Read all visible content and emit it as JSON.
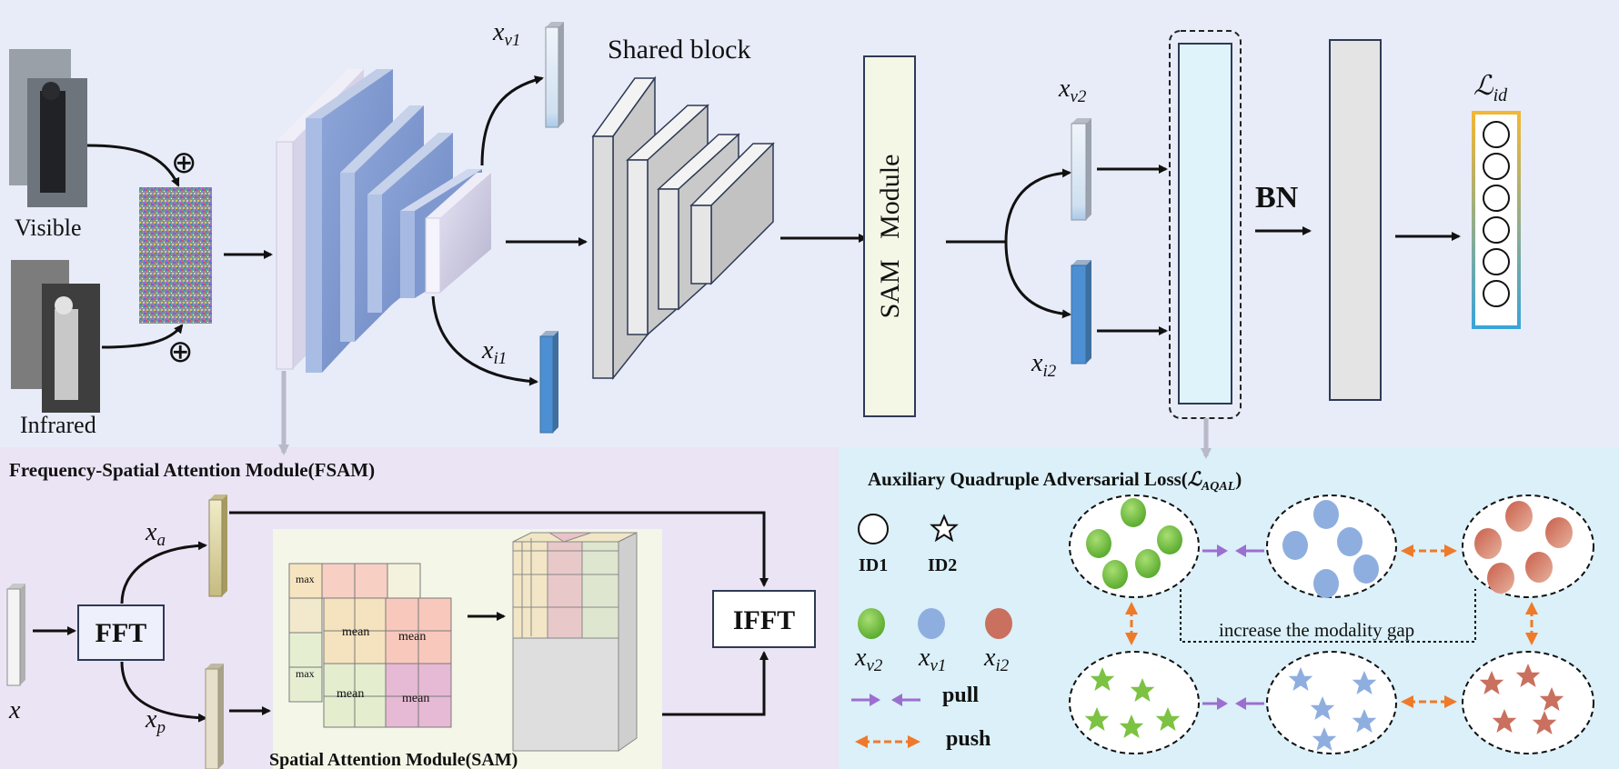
{
  "colors": {
    "top_bg": "#e8ecf8",
    "fsam_bg": "#ebe4f4",
    "aqal_bg": "#dbf0f8",
    "sam_bg": "#f4f6e8",
    "pull": "#9b6fd0",
    "push": "#ee7a2a",
    "green": "#7cc243",
    "blue": "#8faee0",
    "red": "#c9705e"
  },
  "top": {
    "visible_label": "Visible",
    "infrared_label": "Infrared",
    "shared_block_label": "Shared block",
    "sam_module_label": "SAM   Module",
    "bn_label": "BN",
    "xv1": {
      "base": "x",
      "sub": "v1"
    },
    "xi1": {
      "base": "x",
      "sub": "i1"
    },
    "xv2": {
      "base": "x",
      "sub": "v2"
    },
    "xi2": {
      "base": "x",
      "sub": "i2"
    },
    "lid": {
      "base": "ℒ",
      "sub": "id"
    },
    "oplus": "⊕"
  },
  "fsam": {
    "title": "Frequency-Spatial Attention Module(FSAM)",
    "fft": "FFT",
    "ifft": "IFFT",
    "x": "x",
    "xa": {
      "base": "x",
      "sub": "a"
    },
    "xp": {
      "base": "x",
      "sub": "p"
    },
    "sam_title": "Spatial Attention Module(SAM)",
    "max": "max",
    "mean": "mean"
  },
  "aqal": {
    "title_prefix": "Auxiliary Quadruple Adversarial Loss(",
    "title_loss": {
      "base": "ℒ",
      "sub": "AQAL"
    },
    "title_suffix": ")",
    "id1": "ID1",
    "id2": "ID2",
    "pull": "pull",
    "push": "push",
    "gap_text": "increase the modality gap",
    "lv2": {
      "base": "x",
      "sub": "v2"
    },
    "lv1": {
      "base": "x",
      "sub": "v1"
    },
    "li2": {
      "base": "x",
      "sub": "i2"
    }
  }
}
